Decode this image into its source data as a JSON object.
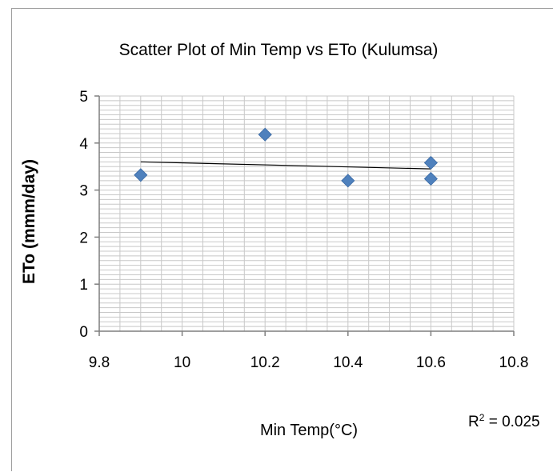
{
  "chart_data": {
    "type": "scatter",
    "title": "Scatter Plot of Min Temp vs ETo (Kulumsa)",
    "xlabel": "Min Temp(°C)",
    "ylabel": "ETo (mmm/day)",
    "xlim": [
      9.8,
      10.8
    ],
    "ylim": [
      0,
      5
    ],
    "xticks": [
      "9.8",
      "10",
      "10.2",
      "10.4",
      "10.6",
      "10.8"
    ],
    "yticks": [
      "0",
      "1",
      "2",
      "3",
      "4",
      "5"
    ],
    "grid": true,
    "x": [
      9.9,
      10.2,
      10.4,
      10.6,
      10.6
    ],
    "y": [
      3.32,
      4.18,
      3.2,
      3.58,
      3.24
    ],
    "trendline": {
      "type": "linear",
      "x": [
        9.9,
        10.6
      ],
      "y": [
        3.6,
        3.45
      ]
    },
    "annotations": [
      {
        "text": "R² = 0.025"
      }
    ],
    "marker_color": "#4f81bd",
    "grid_color": "#c8c8c8"
  }
}
